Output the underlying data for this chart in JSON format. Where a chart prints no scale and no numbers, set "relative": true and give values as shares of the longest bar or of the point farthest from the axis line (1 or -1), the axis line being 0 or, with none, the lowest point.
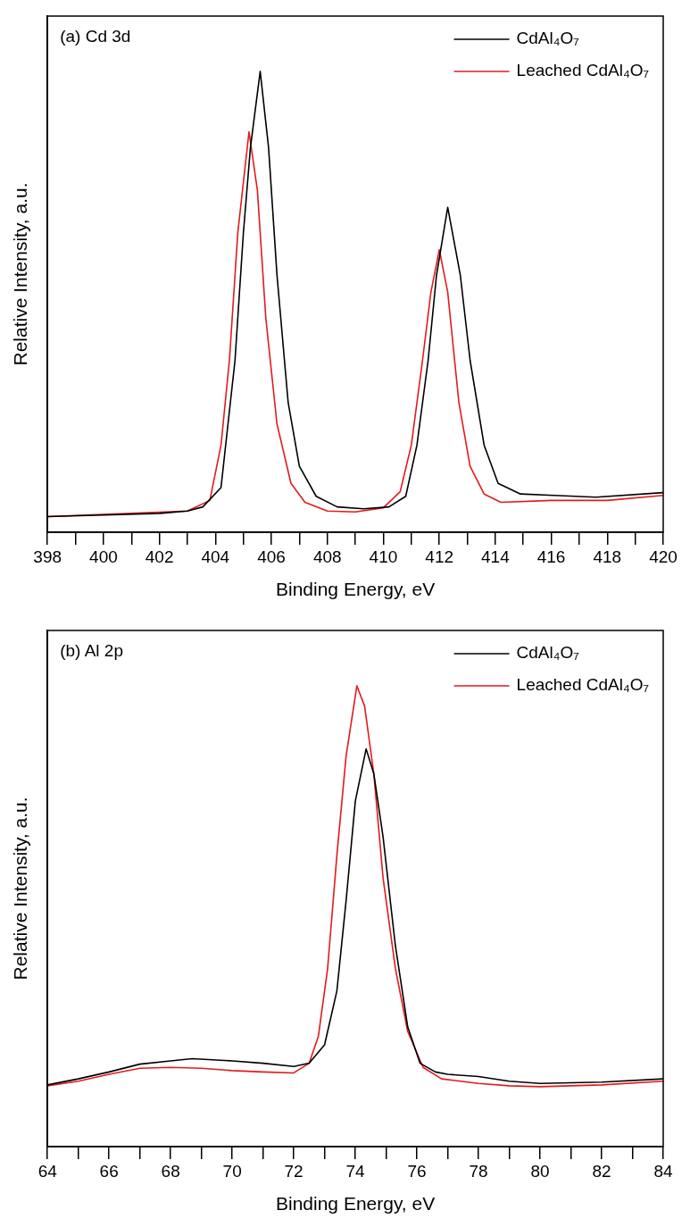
{
  "chart_data": [
    {
      "type": "line",
      "xlabel": "Binding Energy, eV",
      "ylabel": "Relative Intensity, a.u.",
      "annotations": [
        "(a) Cd 3d"
      ],
      "relative": true,
      "legend": "top right",
      "marker": "none",
      "grid": false,
      "line_style": "solid",
      "xlim": [
        398,
        420
      ],
      "xticks": [
        398,
        {
          "value": 399,
          "label": null
        },
        400,
        {
          "value": 401,
          "label": null
        },
        402,
        {
          "value": 403,
          "label": null
        },
        404,
        {
          "value": 405,
          "label": null
        },
        406,
        {
          "value": 407,
          "label": null
        },
        408,
        {
          "value": 409,
          "label": null
        },
        410,
        {
          "value": 411,
          "label": null
        },
        412,
        {
          "value": 413,
          "label": null
        },
        414,
        {
          "value": 415,
          "label": null
        },
        416,
        {
          "value": 417,
          "label": null
        },
        418,
        {
          "value": 419,
          "label": null
        },
        420
      ],
      "series": [
        {
          "name": "CdAl₄O₇",
          "color": "#000000",
          "x": [
            398,
            402,
            403,
            403.55,
            404.2,
            404.7,
            405.0,
            405.25,
            405.6,
            405.9,
            406.2,
            406.6,
            407.0,
            407.6,
            408.35,
            409.3,
            410.2,
            410.8,
            411.2,
            411.6,
            411.9,
            412.3,
            412.75,
            413.1,
            413.6,
            414.1,
            414.9,
            416.1,
            417.6,
            420
          ],
          "values": [
            0.034,
            0.041,
            0.046,
            0.055,
            0.097,
            0.373,
            0.65,
            0.834,
            1,
            0.834,
            0.558,
            0.281,
            0.143,
            0.078,
            0.055,
            0.051,
            0.055,
            0.078,
            0.189,
            0.373,
            0.558,
            0.705,
            0.558,
            0.373,
            0.189,
            0.106,
            0.083,
            0.08,
            0.076,
            0.086
          ]
        },
        {
          "name": "Leached CdAl₄O₇",
          "color": "#e31a1c",
          "x": [
            398,
            403,
            403.8,
            404.2,
            404.5,
            404.8,
            405.2,
            405.5,
            405.8,
            406.2,
            406.7,
            407.2,
            408,
            409,
            410,
            410.6,
            411,
            411.4,
            411.7,
            412.0,
            412.3,
            412.7,
            413.1,
            413.6,
            414.2,
            416,
            418,
            420
          ],
          "values": [
            0.034,
            0.046,
            0.069,
            0.189,
            0.373,
            0.65,
            0.869,
            0.742,
            0.465,
            0.235,
            0.106,
            0.065,
            0.046,
            0.044,
            0.053,
            0.088,
            0.189,
            0.373,
            0.521,
            0.613,
            0.521,
            0.281,
            0.143,
            0.083,
            0.065,
            0.069,
            0.069,
            0.08
          ]
        }
      ]
    },
    {
      "type": "line",
      "xlabel": "Binding Energy, eV",
      "ylabel": "Relative Intensity, a.u.",
      "annotations": [
        "(b) Al 2p"
      ],
      "relative": true,
      "legend": "top right",
      "marker": "none",
      "grid": false,
      "line_style": "solid",
      "xlim": [
        64,
        84
      ],
      "xticks": [
        64,
        {
          "value": 65,
          "label": null
        },
        66,
        {
          "value": 67,
          "label": null
        },
        68,
        {
          "value": 69,
          "label": null
        },
        70,
        {
          "value": 71,
          "label": null
        },
        72,
        {
          "value": 73,
          "label": null
        },
        74,
        {
          "value": 75,
          "label": null
        },
        76,
        {
          "value": 77,
          "label": null
        },
        78,
        {
          "value": 79,
          "label": null
        },
        80,
        {
          "value": 81,
          "label": null
        },
        82,
        {
          "value": 83,
          "label": null
        },
        84
      ],
      "series": [
        {
          "name": "CdAl₄O₇",
          "color": "#000000",
          "x": [
            64,
            65,
            66,
            67,
            68,
            68.7,
            70,
            71,
            72,
            72.5,
            73,
            73.4,
            73.7,
            74.0,
            74.35,
            74.6,
            74.9,
            75.3,
            75.7,
            76.1,
            76.6,
            77,
            78,
            79,
            80,
            82,
            84
          ],
          "values": [
            0.134,
            0.147,
            0.162,
            0.179,
            0.186,
            0.191,
            0.186,
            0.181,
            0.174,
            0.181,
            0.221,
            0.338,
            0.534,
            0.75,
            0.863,
            0.809,
            0.672,
            0.436,
            0.26,
            0.181,
            0.162,
            0.157,
            0.152,
            0.142,
            0.137,
            0.14,
            0.147
          ]
        },
        {
          "name": "Leached CdAl₄O₇",
          "color": "#e31a1c",
          "x": [
            64,
            65,
            66,
            67,
            68,
            69,
            70,
            71,
            72,
            72.5,
            72.8,
            73.1,
            73.4,
            73.7,
            74.05,
            74.3,
            74.6,
            74.9,
            75.3,
            75.7,
            76.2,
            76.8,
            78,
            79,
            80,
            82,
            84
          ],
          "values": [
            0.132,
            0.142,
            0.157,
            0.17,
            0.172,
            0.17,
            0.165,
            0.162,
            0.16,
            0.181,
            0.24,
            0.387,
            0.632,
            0.848,
            1,
            0.956,
            0.809,
            0.583,
            0.387,
            0.25,
            0.172,
            0.147,
            0.137,
            0.132,
            0.13,
            0.134,
            0.142
          ]
        }
      ]
    }
  ]
}
